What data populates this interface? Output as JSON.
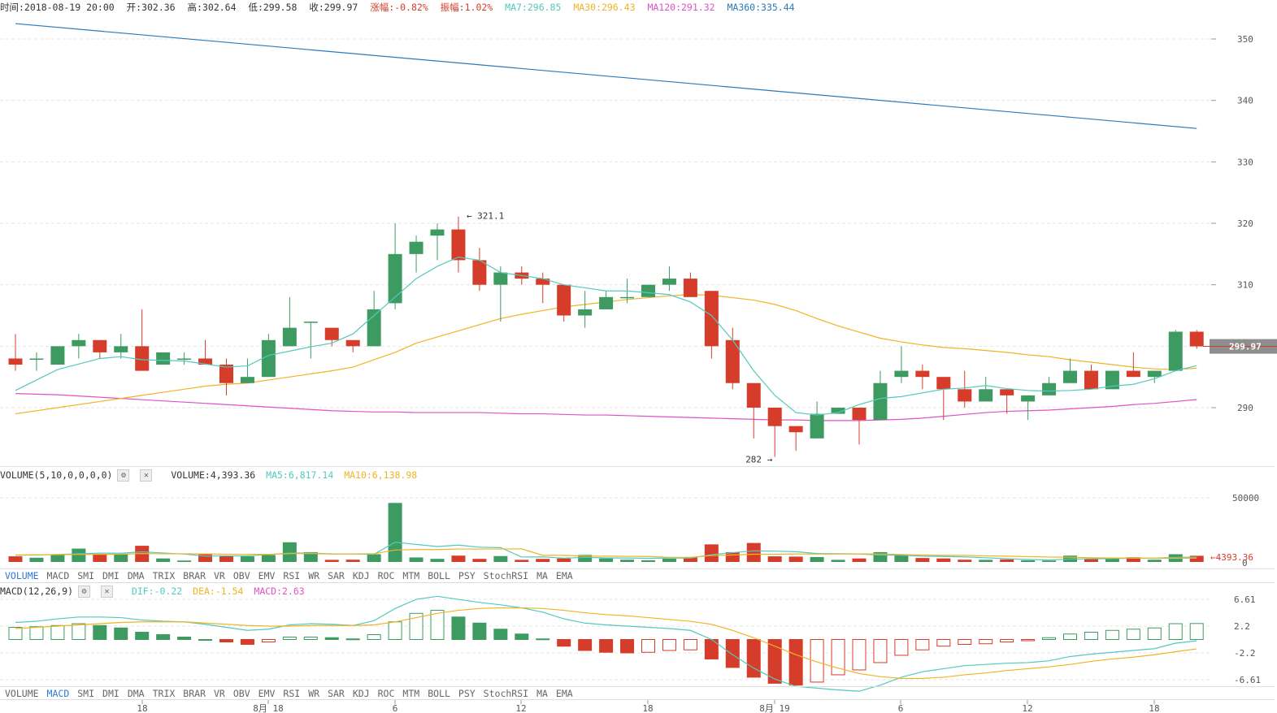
{
  "info": {
    "time": "时间:2018-08-19 20:00",
    "open": "开:302.36",
    "high": "高:302.64",
    "low": "低:299.58",
    "close": "收:299.97",
    "change": "涨幅:-0.82%",
    "amplitude": "振幅:1.02%",
    "ma7": "MA7:296.85",
    "ma30": "MA30:296.43",
    "ma120": "MA120:291.32",
    "ma360": "MA360:335.44"
  },
  "colors": {
    "up": "#3d9b61",
    "down": "#d63c2a",
    "ma7": "#53c9bd",
    "ma30": "#f0b325",
    "ma120": "#e052c5",
    "ma360": "#2c79b8",
    "info_label": "#333333",
    "tab_active": "#2b7bd6"
  },
  "price_axis": {
    "ticks": [
      "350",
      "340",
      "330",
      "320",
      "310",
      "290"
    ],
    "current": "299.97"
  },
  "annotations": {
    "high": "← 321.1",
    "low": "282 →"
  },
  "volume_header": {
    "title": "VOLUME(5,10,0,0,0,0)",
    "volume": "VOLUME:4,393.36",
    "ma5": "MA5:6,817.14",
    "ma10": "MA10:6,138.98"
  },
  "volume_axis": {
    "ticks": [
      "50000",
      "0"
    ],
    "current": "←4393.36"
  },
  "macd_header": {
    "title": "MACD(12,26,9)",
    "dif": "DIF:-0.22",
    "dea": "DEA:-1.54",
    "macd": "MACD:2.63"
  },
  "macd_axis": {
    "ticks": [
      "6.61",
      "2.2",
      "-2.2",
      "-6.61"
    ]
  },
  "indicator_tabs": [
    "VOLUME",
    "MACD",
    "SMI",
    "DMI",
    "DMA",
    "TRIX",
    "BRAR",
    "VR",
    "OBV",
    "EMV",
    "RSI",
    "WR",
    "SAR",
    "KDJ",
    "ROC",
    "MTM",
    "BOLL",
    "PSY",
    "StochRSI",
    "MA",
    "EMA"
  ],
  "tabs_top_active": "VOLUME",
  "tabs_bottom_active": "MACD",
  "x_axis": [
    "18",
    "8月 18",
    "6",
    "12",
    "18",
    "8月 19",
    "6",
    "12",
    "18"
  ],
  "chart_data": {
    "type": "candlestick",
    "interval": "1 hour",
    "price_range": [
      280,
      353
    ],
    "candles": [
      [
        298,
        297,
        302,
        296
      ],
      [
        298,
        298,
        299,
        296
      ],
      [
        297,
        300,
        300,
        297
      ],
      [
        300,
        301,
        302,
        298
      ],
      [
        301,
        299,
        301,
        298
      ],
      [
        299,
        300,
        302,
        298
      ],
      [
        300,
        296,
        306,
        296
      ],
      [
        297,
        299,
        299,
        297
      ],
      [
        298,
        298,
        299,
        297
      ],
      [
        298,
        297,
        301,
        297
      ],
      [
        297,
        294,
        298,
        292
      ],
      [
        294,
        295,
        298,
        294
      ],
      [
        295,
        301,
        302,
        295
      ],
      [
        300,
        303,
        308,
        300
      ],
      [
        304,
        304,
        304,
        298
      ],
      [
        303,
        301,
        303,
        300
      ],
      [
        301,
        300,
        301,
        299
      ],
      [
        300,
        306,
        309,
        300
      ],
      [
        307,
        315,
        320,
        306
      ],
      [
        315,
        317,
        318,
        312
      ],
      [
        318,
        319,
        320,
        314
      ],
      [
        319,
        314,
        321.1,
        312
      ],
      [
        314,
        310,
        316,
        309
      ],
      [
        310,
        312,
        313,
        304
      ],
      [
        312,
        311,
        313,
        310
      ],
      [
        311,
        310,
        312,
        307
      ],
      [
        310,
        305,
        310,
        304
      ],
      [
        305,
        306,
        309,
        303
      ],
      [
        306,
        308,
        309,
        306
      ],
      [
        308,
        308,
        311,
        307
      ],
      [
        308,
        310,
        310,
        308
      ],
      [
        310,
        311,
        313,
        309
      ],
      [
        311,
        308,
        312,
        308
      ],
      [
        309,
        300,
        309,
        298
      ],
      [
        301,
        294,
        303,
        293
      ],
      [
        294,
        290,
        294,
        285
      ],
      [
        290,
        287,
        290,
        282
      ],
      [
        287,
        286,
        287,
        283
      ],
      [
        285,
        289,
        291,
        285
      ],
      [
        289,
        290,
        290,
        289
      ],
      [
        290,
        288,
        290,
        284
      ],
      [
        288,
        294,
        296,
        288
      ],
      [
        295,
        296,
        300,
        294
      ],
      [
        296,
        295,
        297,
        293
      ],
      [
        295,
        293,
        295,
        288
      ],
      [
        293,
        291,
        296,
        290
      ],
      [
        291,
        293,
        295,
        291
      ],
      [
        293,
        292,
        293,
        289
      ],
      [
        291,
        292,
        292,
        288
      ],
      [
        292,
        294,
        295,
        292
      ],
      [
        294,
        296,
        298,
        294
      ],
      [
        296,
        293,
        297,
        293
      ],
      [
        293,
        296,
        296,
        293
      ],
      [
        296,
        295,
        299,
        295
      ],
      [
        295,
        296,
        296,
        294
      ],
      [
        296,
        302.36,
        302.64,
        296
      ],
      [
        302.36,
        299.97,
        302.64,
        299.58
      ]
    ],
    "ma7": [
      292.8,
      294.5,
      296.2,
      297.1,
      298,
      298.3,
      297.8,
      297.7,
      297.6,
      297.1,
      296.6,
      296.8,
      298.5,
      299.2,
      299.9,
      300.5,
      302,
      305,
      308,
      311,
      313,
      314.5,
      314,
      312,
      311.5,
      311,
      310,
      309.5,
      309,
      309,
      308.7,
      308.4,
      307.2,
      305,
      301,
      296,
      292,
      289.2,
      288.8,
      289.2,
      290.5,
      291.5,
      291.8,
      292.4,
      293,
      293.2,
      293.6,
      293.1,
      292.8,
      292.7,
      292.8,
      293,
      293.5,
      293.8,
      294.7,
      296,
      296.85
    ],
    "ma30": [
      289,
      289.5,
      290,
      290.5,
      291,
      291.5,
      292,
      292.5,
      293,
      293.5,
      293.8,
      294,
      294.5,
      295,
      295.5,
      296,
      296.6,
      297.8,
      299,
      300.5,
      301.5,
      302.5,
      303.5,
      304.5,
      305.2,
      305.8,
      306.4,
      306.8,
      307.2,
      307.6,
      307.9,
      308.2,
      308.4,
      308.3,
      307.9,
      307.5,
      306.8,
      305.8,
      304.5,
      303.3,
      302.3,
      301.3,
      300.7,
      300.2,
      299.8,
      299.6,
      299.3,
      299,
      298.6,
      298.3,
      297.8,
      297.4,
      297,
      296.6,
      296.3,
      296.2,
      296.43
    ],
    "ma120": [
      292.3,
      292.2,
      292.1,
      291.9,
      291.7,
      291.5,
      291.3,
      291.1,
      290.9,
      290.7,
      290.5,
      290.3,
      290.1,
      289.9,
      289.7,
      289.5,
      289.4,
      289.3,
      289.3,
      289.2,
      289.2,
      289.2,
      289.2,
      289.1,
      289,
      289,
      288.9,
      288.8,
      288.8,
      288.7,
      288.6,
      288.5,
      288.4,
      288.3,
      288.2,
      288.1,
      288,
      288,
      287.9,
      287.9,
      287.9,
      288,
      288.1,
      288.3,
      288.6,
      288.9,
      289.2,
      289.4,
      289.5,
      289.6,
      289.8,
      290,
      290.2,
      290.5,
      290.7,
      291,
      291.32
    ],
    "ma360": [
      352.5,
      335.44
    ],
    "volume": [
      4000,
      3000,
      5000,
      9500,
      5500,
      5500,
      11500,
      2500,
      1000,
      6000,
      4500,
      4000,
      5000,
      14000,
      7000,
      1500,
      1600,
      5500,
      42000,
      3200,
      2200,
      4500,
      2200,
      4200,
      1500,
      2200,
      2500,
      5000,
      2500,
      1600,
      1200,
      2300,
      3200,
      12500,
      7000,
      13500,
      4000,
      3800,
      3500,
      1500,
      2500,
      7000,
      5500,
      2800,
      2500,
      1600,
      1500,
      1800,
      1200,
      1000,
      4500,
      2500,
      2800,
      3300,
      1600,
      5500,
      4393.36
    ],
    "volume_range": [
      0,
      55000
    ],
    "volume_ma5": [
      4800,
      5000,
      5300,
      5800,
      6300,
      6200,
      7200,
      6400,
      5600,
      4200,
      4300,
      4300,
      5300,
      6300,
      6400,
      5700,
      5700,
      5500,
      14000,
      12500,
      11000,
      12000,
      10500,
      10200,
      3500,
      3600,
      2700,
      3300,
      2900,
      2800,
      2600,
      2800,
      2700,
      5200,
      6600,
      7900,
      7700,
      7300,
      6000,
      5900,
      5700,
      4900,
      4800,
      4100,
      3900,
      3600,
      3000,
      2300,
      1800,
      1400,
      2100,
      2200,
      2400,
      2700,
      2700,
      3300,
      3400
    ],
    "volume_ma10": [
      5000,
      5100,
      5200,
      5300,
      5400,
      5500,
      6000,
      5800,
      5800,
      5700,
      5500,
      5400,
      5400,
      5900,
      6000,
      5600,
      5800,
      5800,
      8500,
      8800,
      8800,
      9200,
      9200,
      9200,
      9300,
      4700,
      4700,
      4200,
      4100,
      4000,
      3900,
      3300,
      3300,
      4500,
      5000,
      5500,
      5500,
      5700,
      5600,
      5600,
      5700,
      5700,
      5300,
      4900,
      4700,
      4700,
      4300,
      4100,
      3800,
      3500,
      3400,
      3000,
      2800,
      2700,
      2600,
      2600,
      2700
    ],
    "macd_range": [
      -7.2,
      7.2
    ],
    "macd_hist": [
      2,
      2.1,
      2.3,
      2.6,
      2.3,
      1.9,
      1.2,
      0.8,
      0.4,
      0,
      -0.4,
      -0.8,
      -0.4,
      0.4,
      0.4,
      0.3,
      0.1,
      0.8,
      2.9,
      4.3,
      4.8,
      3.7,
      2.7,
      1.7,
      0.9,
      0.1,
      -1.1,
      -1.8,
      -2.1,
      -2.2,
      -2.1,
      -1.8,
      -1.7,
      -3.2,
      -4.6,
      -6.2,
      -7.2,
      -7.5,
      -7.0,
      -5.8,
      -5.0,
      -3.8,
      -2.6,
      -1.7,
      -1.1,
      -0.8,
      -0.7,
      -0.4,
      -0.2,
      0.3,
      0.9,
      1.2,
      1.5,
      1.7,
      1.9,
      2.6,
      2.63
    ],
    "macd_dif": [
      2.8,
      3,
      3.4,
      3.7,
      3.7,
      3.6,
      3.2,
      3,
      2.9,
      2.5,
      2,
      1.5,
      1.7,
      2.4,
      2.6,
      2.5,
      2.3,
      3.1,
      5.1,
      6.6,
      7.1,
      6.6,
      6.1,
      5.7,
      5.2,
      4.5,
      3.4,
      2.7,
      2.4,
      2.2,
      2,
      1.8,
      1.5,
      0,
      -2.5,
      -4.7,
      -6.5,
      -7.7,
      -8,
      -8.3,
      -8.5,
      -7.5,
      -6.2,
      -5.3,
      -4.8,
      -4.3,
      -4.1,
      -3.9,
      -3.8,
      -3.5,
      -2.8,
      -2.4,
      -2.1,
      -1.8,
      -1.5,
      -0.6,
      -0.22
    ],
    "macd_dea": [
      1.8,
      2,
      2.2,
      2.4,
      2.6,
      2.8,
      2.9,
      2.9,
      2.9,
      2.7,
      2.5,
      2.3,
      2.2,
      2.2,
      2.3,
      2.3,
      2.3,
      2.4,
      2.9,
      3.6,
      4.3,
      4.8,
      5.1,
      5.2,
      5.2,
      5.1,
      4.8,
      4.4,
      4.1,
      3.9,
      3.6,
      3.3,
      3,
      2.5,
      1.5,
      0.3,
      -1.1,
      -2.5,
      -3.7,
      -4.7,
      -5.6,
      -6.1,
      -6.4,
      -6.4,
      -6.2,
      -5.8,
      -5.5,
      -5.1,
      -4.8,
      -4.5,
      -4.1,
      -3.6,
      -3.2,
      -2.9,
      -2.5,
      -2,
      -1.54
    ]
  }
}
